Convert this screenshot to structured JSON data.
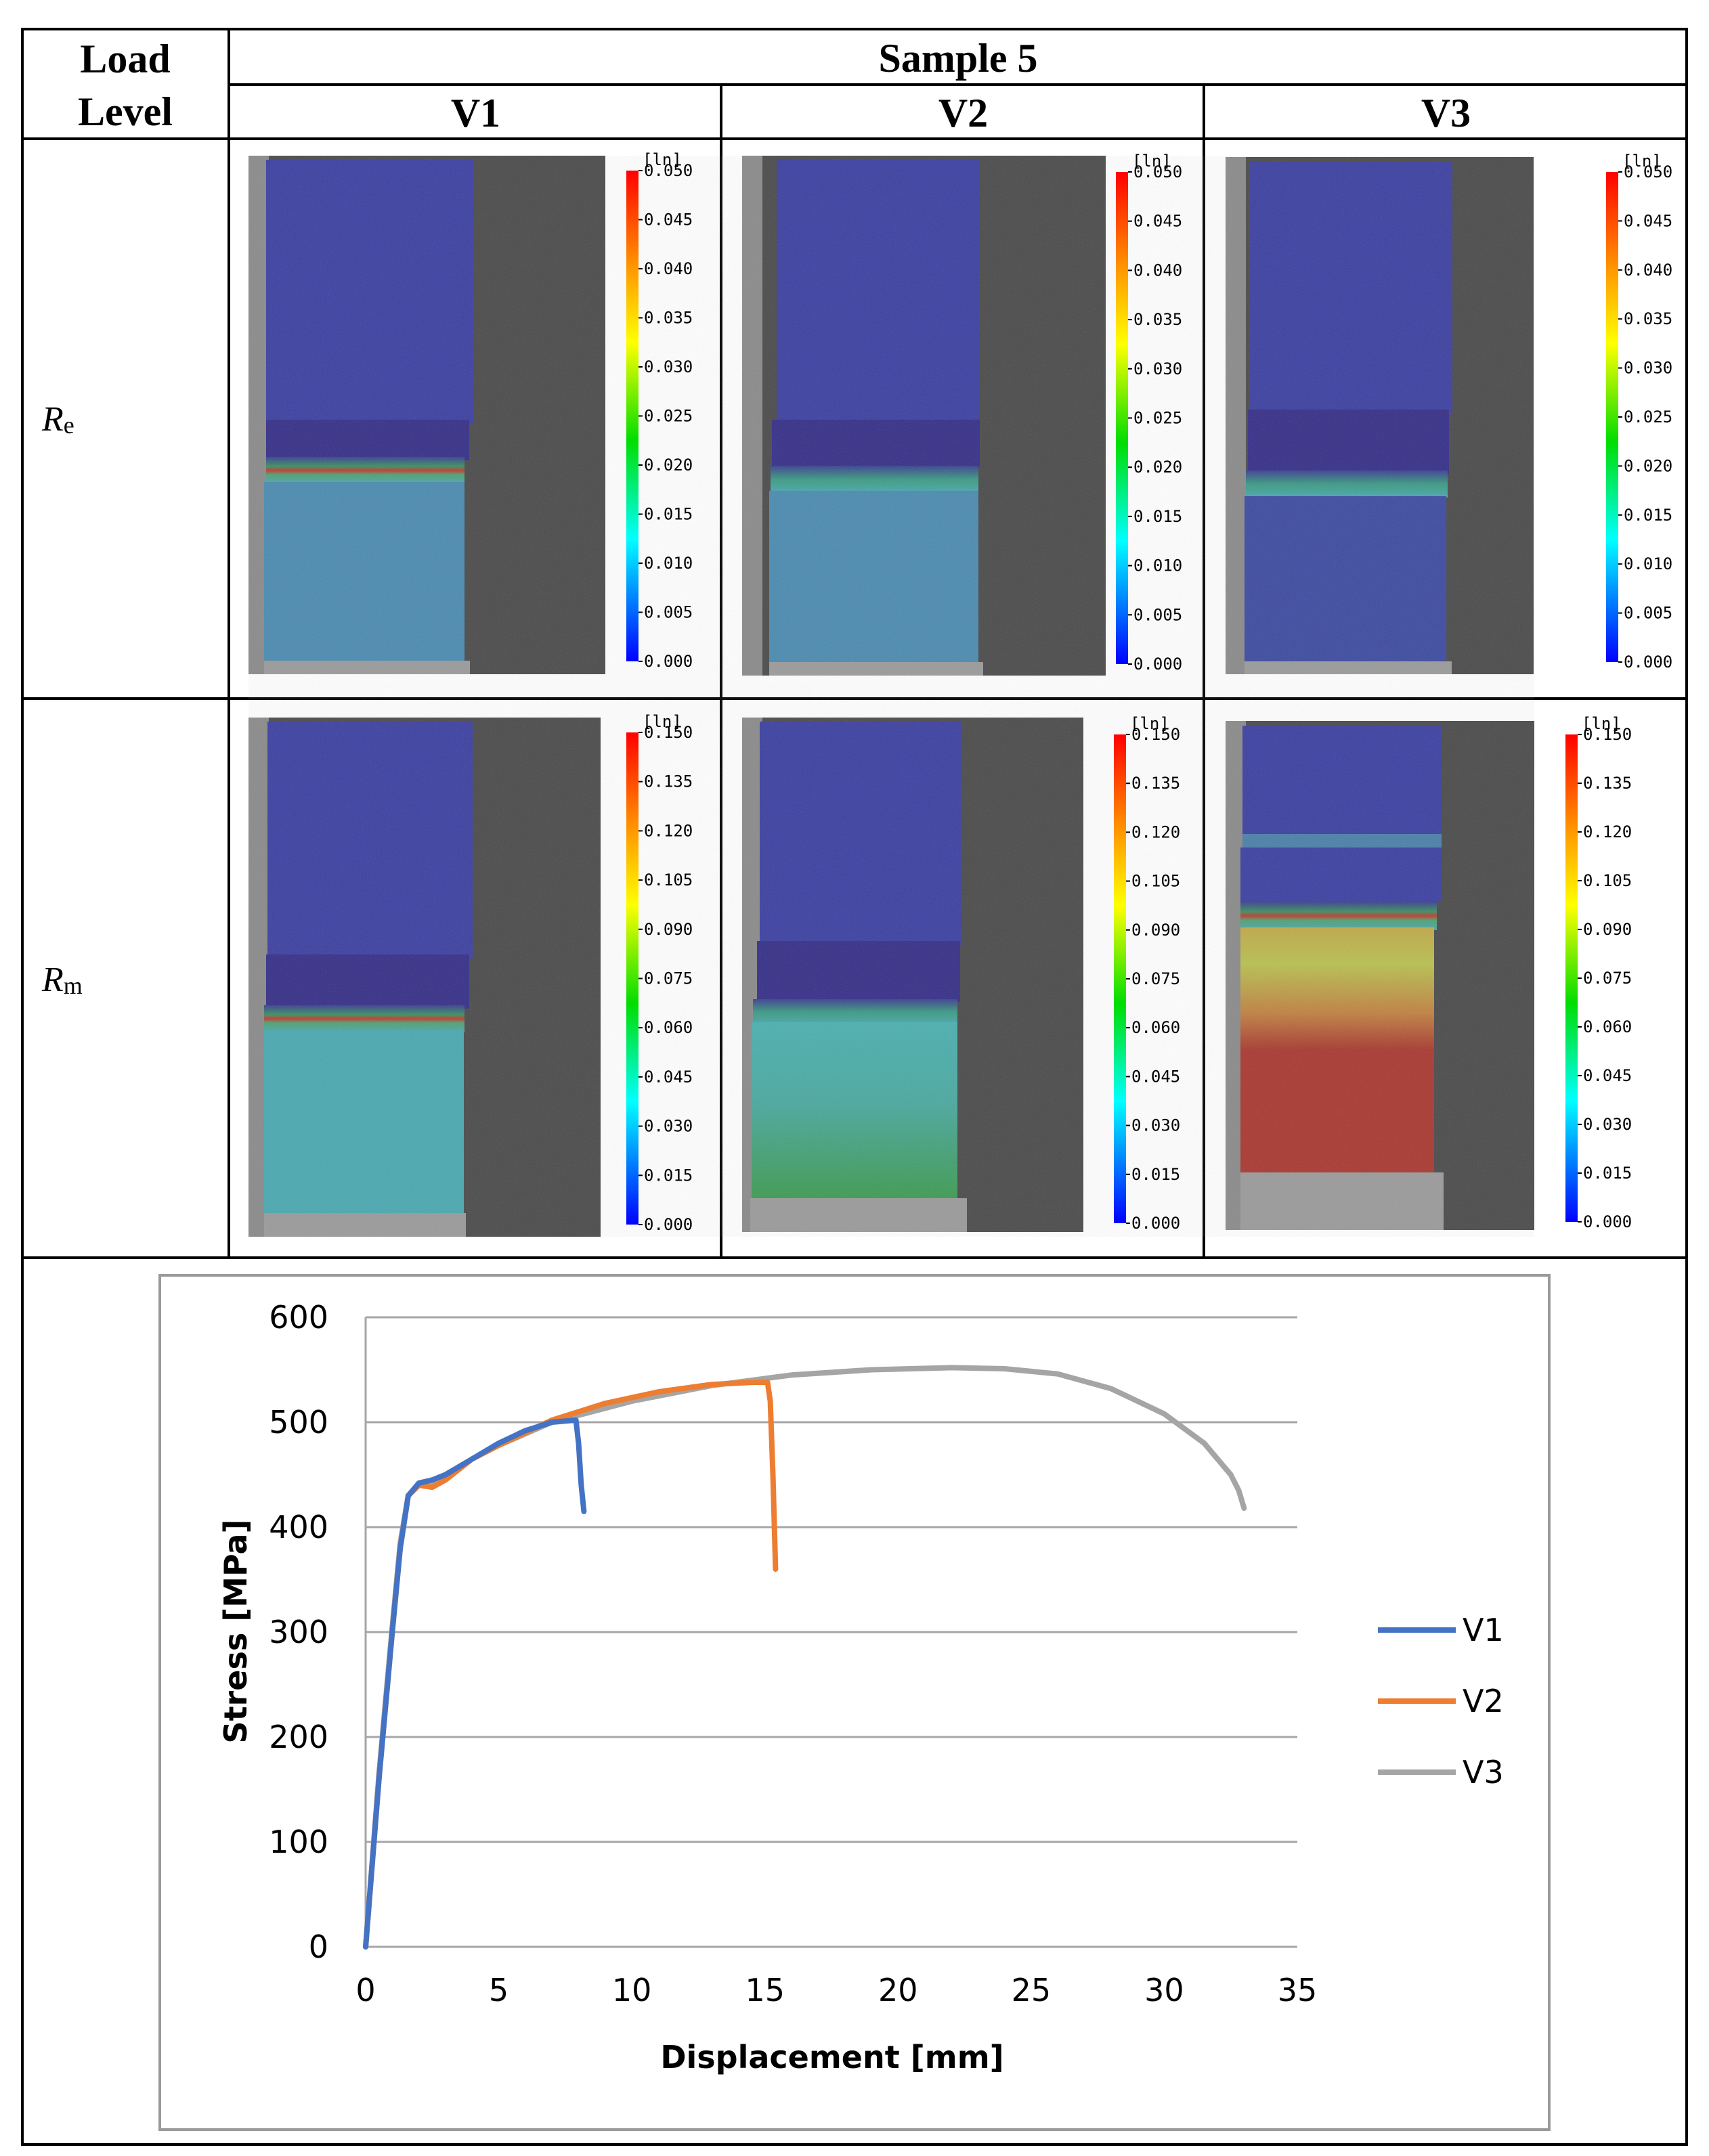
{
  "table": {
    "col_header_load": "Load Level",
    "col_header_sample": "Sample 5",
    "variants": [
      "V1",
      "V2",
      "V3"
    ],
    "rows": [
      {
        "label_main": "R",
        "label_sub": "e"
      },
      {
        "label_main": "R",
        "label_sub": "m"
      }
    ]
  },
  "strain_maps": {
    "unit_label": "[ln]",
    "colorbar_Re": [
      "0.050",
      "0.045",
      "0.040",
      "0.035",
      "0.030",
      "0.025",
      "0.020",
      "0.015",
      "0.010",
      "0.005",
      "0.000"
    ],
    "colorbar_Rm": [
      "0.150",
      "0.135",
      "0.120",
      "0.105",
      "0.090",
      "0.075",
      "0.060",
      "0.045",
      "0.030",
      "0.015",
      "0.000"
    ],
    "colors": {
      "background": "#4a4a4a",
      "low": "#3b3fa0",
      "mid": "#4aa8b0",
      "high": "#b23a36"
    }
  },
  "chart_data": {
    "type": "line",
    "xlabel": "Displacement [mm]",
    "ylabel": "Stress [MPa]",
    "xlim": [
      0,
      35
    ],
    "ylim": [
      0,
      600
    ],
    "xticks": [
      0,
      5,
      10,
      15,
      20,
      25,
      30,
      35
    ],
    "yticks": [
      0,
      100,
      200,
      300,
      400,
      500,
      600
    ],
    "grid": "horizontal",
    "legend_position": "right",
    "series": [
      {
        "name": "V1",
        "color": "#4472c4",
        "x": [
          0,
          0.5,
          1.0,
          1.3,
          1.6,
          2.0,
          2.5,
          3.0,
          4.0,
          5.0,
          6.0,
          7.0,
          7.9,
          8.0,
          8.1,
          8.2
        ],
        "y": [
          0,
          160,
          300,
          380,
          430,
          442,
          445,
          450,
          465,
          480,
          492,
          500,
          502,
          480,
          440,
          415
        ]
      },
      {
        "name": "V2",
        "color": "#ed7d31",
        "x": [
          0,
          0.5,
          1.0,
          1.3,
          1.6,
          2.0,
          2.5,
          3.0,
          4.0,
          5.0,
          7.0,
          9.0,
          11.0,
          13.0,
          14.5,
          15.1,
          15.2,
          15.3,
          15.4
        ],
        "y": [
          0,
          160,
          300,
          380,
          430,
          440,
          438,
          445,
          465,
          478,
          502,
          518,
          529,
          536,
          538,
          538,
          520,
          450,
          360
        ]
      },
      {
        "name": "V3",
        "color": "#a5a5a5",
        "x": [
          0,
          0.5,
          1.0,
          1.3,
          1.6,
          2.0,
          2.5,
          3.0,
          4.0,
          5.0,
          7.0,
          10.0,
          13.0,
          16.0,
          19.0,
          22.0,
          24.0,
          26.0,
          28.0,
          30.0,
          31.5,
          32.5,
          32.8,
          33.0
        ],
        "y": [
          0,
          165,
          305,
          385,
          430,
          440,
          442,
          448,
          465,
          478,
          500,
          520,
          535,
          545,
          550,
          552,
          551,
          546,
          532,
          508,
          480,
          450,
          435,
          418
        ]
      }
    ]
  }
}
